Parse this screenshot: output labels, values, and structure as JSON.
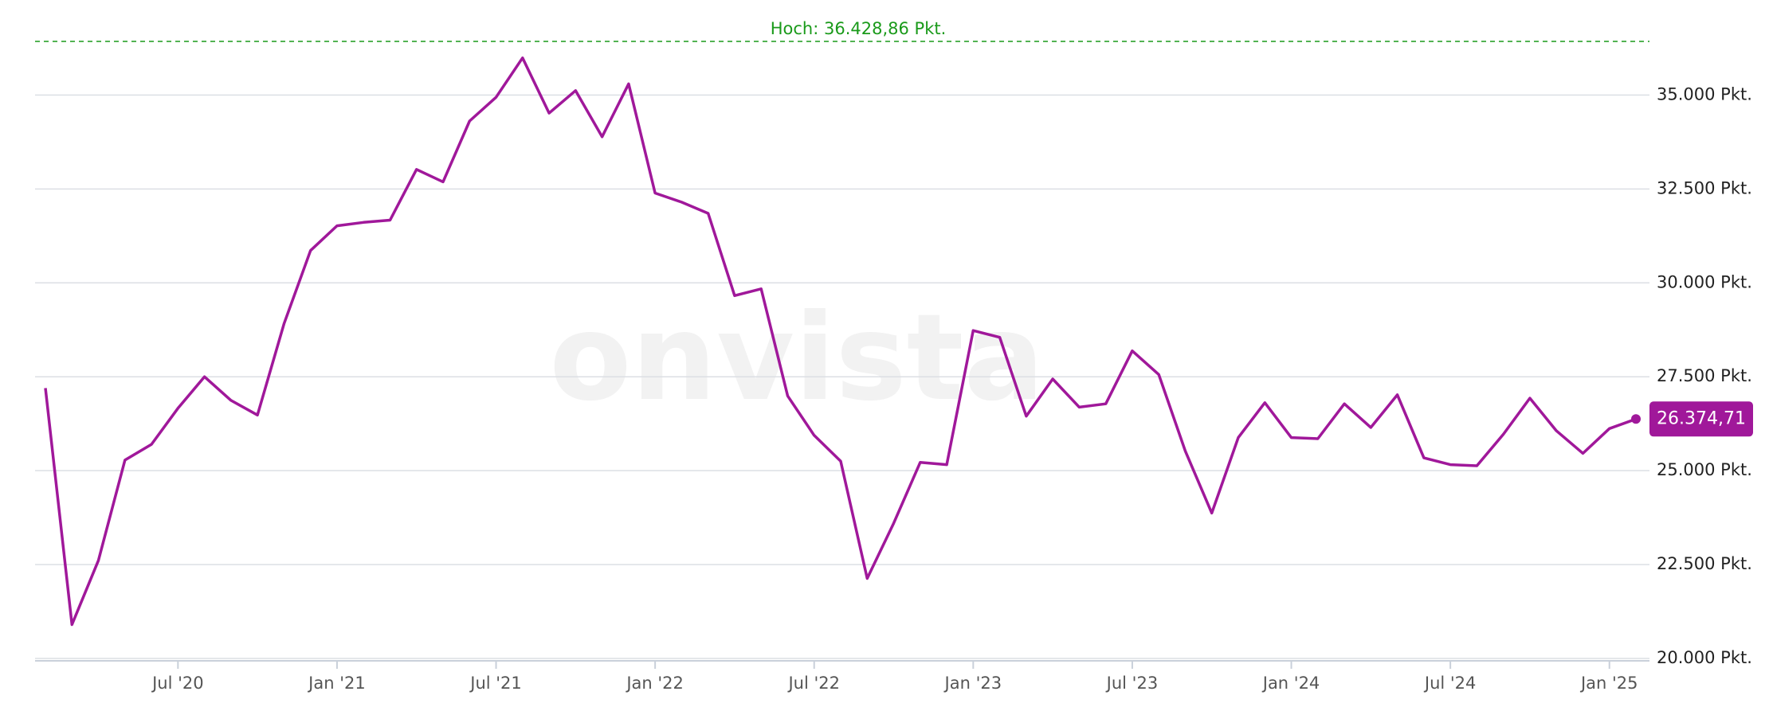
{
  "chart_data": {
    "type": "line",
    "watermark": "onvista",
    "x": [
      "2020-02",
      "2020-03",
      "2020-04",
      "2020-05",
      "2020-06",
      "2020-07",
      "2020-08",
      "2020-09",
      "2020-10",
      "2020-11",
      "2020-12",
      "2021-01",
      "2021-02",
      "2021-03",
      "2021-04",
      "2021-05",
      "2021-06",
      "2021-07",
      "2021-08",
      "2021-09",
      "2021-10",
      "2021-11",
      "2021-12",
      "2022-01",
      "2022-02",
      "2022-03",
      "2022-04",
      "2022-05",
      "2022-06",
      "2022-07",
      "2022-08",
      "2022-09",
      "2022-10",
      "2022-11",
      "2022-12",
      "2023-01",
      "2023-02",
      "2023-03",
      "2023-04",
      "2023-05",
      "2023-06",
      "2023-07",
      "2023-08",
      "2023-09",
      "2023-10",
      "2023-11",
      "2023-12",
      "2024-01",
      "2024-02",
      "2024-03",
      "2024-04",
      "2024-05",
      "2024-06",
      "2024-07",
      "2024-08",
      "2024-09",
      "2024-10",
      "2024-11",
      "2024-12",
      "2025-01",
      "2025-02"
    ],
    "values": [
      27200,
      20900,
      22610,
      25280,
      25700,
      26660,
      27500,
      26870,
      26480,
      28910,
      30860,
      31520,
      31610,
      31670,
      33020,
      32690,
      34310,
      34940,
      35990,
      34520,
      35120,
      33890,
      35300,
      32390,
      32150,
      31850,
      29660,
      29840,
      26990,
      25940,
      25250,
      22130,
      23600,
      25220,
      25160,
      28730,
      28550,
      26450,
      27440,
      26690,
      26780,
      28190,
      27560,
      25520,
      23870,
      25880,
      26810,
      25880,
      25850,
      26780,
      26150,
      27020,
      25340,
      25160,
      25130,
      25970,
      26930,
      26060,
      25460,
      26120,
      26374.71
    ],
    "color": "#a0189a",
    "last_label": "26.374,71",
    "high": {
      "value": 36428.86,
      "label": "Hoch: 36.428,86 Pkt.",
      "color": "#1a9a1a"
    },
    "ylim": [
      20000,
      36620
    ],
    "yticks": [
      {
        "value": 20000,
        "label": "20.000 Pkt."
      },
      {
        "value": 22500,
        "label": "22.500 Pkt."
      },
      {
        "value": 25000,
        "label": "25.000 Pkt."
      },
      {
        "value": 27500,
        "label": "27.500 Pkt."
      },
      {
        "value": 30000,
        "label": "30.000 Pkt."
      },
      {
        "value": 32500,
        "label": "32.500 Pkt."
      },
      {
        "value": 35000,
        "label": "35.000 Pkt."
      }
    ],
    "xticks": [
      {
        "value": "2020-07",
        "label": "Jul '20"
      },
      {
        "value": "2021-01",
        "label": "Jan '21"
      },
      {
        "value": "2021-07",
        "label": "Jul '21"
      },
      {
        "value": "2022-01",
        "label": "Jan '22"
      },
      {
        "value": "2022-07",
        "label": "Jul '22"
      },
      {
        "value": "2023-01",
        "label": "Jan '23"
      },
      {
        "value": "2023-07",
        "label": "Jul '23"
      },
      {
        "value": "2024-01",
        "label": "Jan '24"
      },
      {
        "value": "2024-07",
        "label": "Jul '24"
      },
      {
        "value": "2025-01",
        "label": "Jan '25"
      }
    ],
    "grid": true
  }
}
